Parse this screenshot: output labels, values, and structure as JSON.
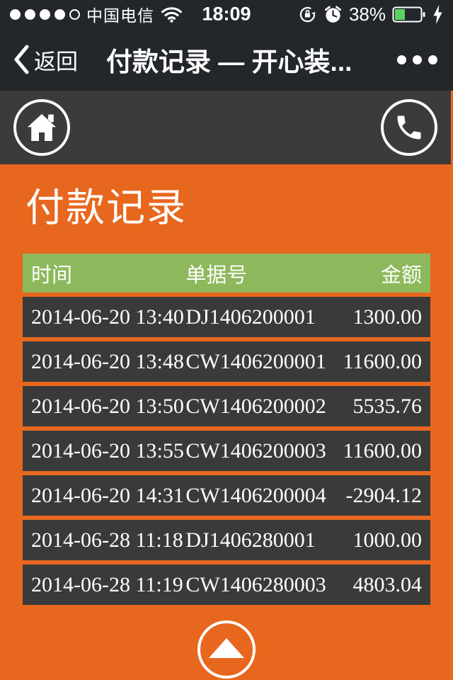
{
  "status_bar": {
    "carrier": "中国电信",
    "time": "18:09",
    "battery_percent": "38%",
    "signal": {
      "filled": 4,
      "total": 5
    },
    "icons": [
      "signal-dots",
      "wifi-icon",
      "orientation-lock-icon",
      "alarm-clock-icon",
      "battery-icon",
      "charging-bolt-icon"
    ]
  },
  "nav_bar": {
    "back_label": "返回",
    "title": "付款记录 — 开心装...",
    "icons": [
      "back-chevron-icon",
      "ellipsis-icon"
    ]
  },
  "toolbar": {
    "icons": [
      "home-icon",
      "phone-icon"
    ]
  },
  "page": {
    "title": "付款记录"
  },
  "table": {
    "headers": [
      "时间",
      "单据号",
      "金额"
    ],
    "rows": [
      {
        "time": "2014-06-20 13:40",
        "doc": "DJ1406200001",
        "amount": "1300.00"
      },
      {
        "time": "2014-06-20 13:48",
        "doc": "CW1406200001",
        "amount": "11600.00"
      },
      {
        "time": "2014-06-20 13:50",
        "doc": "CW1406200002",
        "amount": "5535.76"
      },
      {
        "time": "2014-06-20 13:55",
        "doc": "CW1406200003",
        "amount": "11600.00"
      },
      {
        "time": "2014-06-20 14:31",
        "doc": "CW1406200004",
        "amount": "-2904.12"
      },
      {
        "time": "2014-06-28 11:18",
        "doc": "DJ1406280001",
        "amount": "1000.00"
      },
      {
        "time": "2014-06-28 11:19",
        "doc": "CW1406280003",
        "amount": "4803.04"
      }
    ]
  },
  "colors": {
    "accent_orange": "#E8671E",
    "header_green": "#8DB95C",
    "top_bar_dark": "#23272C",
    "toolbar_gray": "#3B3B3B",
    "row_gray": "#3A3A3A",
    "battery_green": "#58D35F"
  }
}
